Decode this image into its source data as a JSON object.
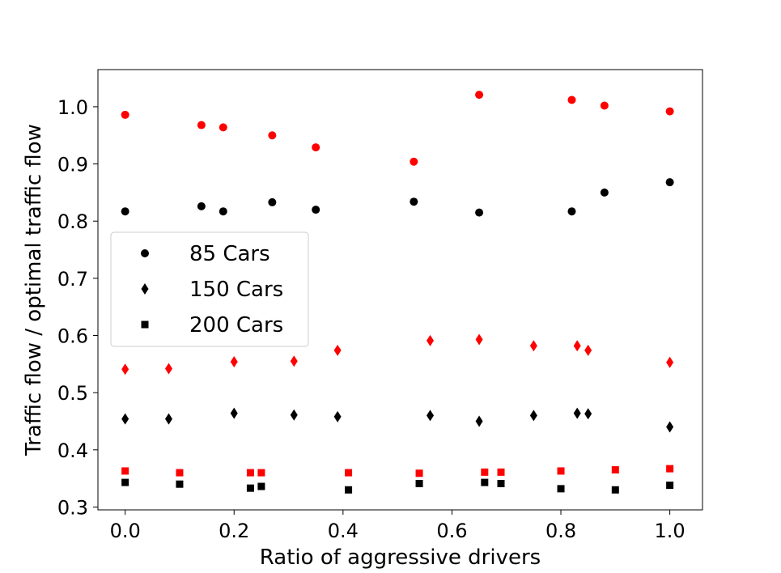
{
  "chart_data": {
    "type": "scatter",
    "title": "",
    "xlabel": "Ratio of aggressive drivers",
    "ylabel": "Traffic flow / optimal traffic flow",
    "xlim": [
      -0.05,
      1.06
    ],
    "ylim": [
      0.295,
      1.065
    ],
    "xticks": [
      0.0,
      0.2,
      0.4,
      0.6,
      0.8,
      1.0
    ],
    "xtick_labels": [
      "0.0",
      "0.2",
      "0.4",
      "0.6",
      "0.8",
      "1.0"
    ],
    "yticks": [
      0.3,
      0.4,
      0.5,
      0.6,
      0.7,
      0.8,
      0.9,
      1.0
    ],
    "ytick_labels": [
      "0.3",
      "0.4",
      "0.5",
      "0.6",
      "0.7",
      "0.8",
      "0.9",
      "1.0"
    ],
    "grid": false,
    "legend_position": "center-left",
    "legend": [
      {
        "label": "85 Cars",
        "marker": "circle"
      },
      {
        "label": "150 Cars",
        "marker": "diamond"
      },
      {
        "label": "200 Cars",
        "marker": "square"
      }
    ],
    "series": [
      {
        "marker": "circle",
        "color": "#ff0000",
        "x": [
          0.0,
          0.14,
          0.18,
          0.27,
          0.35,
          0.53,
          0.65,
          0.82,
          0.88,
          1.0
        ],
        "y": [
          0.986,
          0.968,
          0.964,
          0.95,
          0.929,
          0.904,
          1.021,
          1.012,
          1.002,
          0.992
        ]
      },
      {
        "marker": "circle",
        "color": "#000000",
        "x": [
          0.0,
          0.14,
          0.18,
          0.27,
          0.35,
          0.53,
          0.65,
          0.82,
          0.88,
          1.0
        ],
        "y": [
          0.817,
          0.826,
          0.817,
          0.833,
          0.82,
          0.834,
          0.815,
          0.817,
          0.85,
          0.868
        ]
      },
      {
        "marker": "diamond",
        "color": "#ff0000",
        "x": [
          0.0,
          0.08,
          0.2,
          0.31,
          0.39,
          0.56,
          0.65,
          0.75,
          0.83,
          0.85,
          1.0
        ],
        "y": [
          0.541,
          0.542,
          0.554,
          0.555,
          0.574,
          0.591,
          0.593,
          0.582,
          0.582,
          0.574,
          0.553
        ]
      },
      {
        "marker": "diamond",
        "color": "#000000",
        "x": [
          0.0,
          0.08,
          0.2,
          0.31,
          0.39,
          0.56,
          0.65,
          0.75,
          0.83,
          0.85,
          1.0
        ],
        "y": [
          0.454,
          0.454,
          0.464,
          0.461,
          0.458,
          0.46,
          0.45,
          0.46,
          0.464,
          0.463,
          0.44
        ]
      },
      {
        "marker": "square",
        "color": "#ff0000",
        "x": [
          0.0,
          0.1,
          0.23,
          0.25,
          0.41,
          0.54,
          0.66,
          0.69,
          0.8,
          0.9,
          1.0
        ],
        "y": [
          0.363,
          0.36,
          0.36,
          0.36,
          0.36,
          0.359,
          0.361,
          0.361,
          0.363,
          0.365,
          0.367
        ]
      },
      {
        "marker": "square",
        "color": "#000000",
        "x": [
          0.0,
          0.1,
          0.23,
          0.25,
          0.41,
          0.54,
          0.66,
          0.69,
          0.8,
          0.9,
          1.0
        ],
        "y": [
          0.343,
          0.34,
          0.333,
          0.336,
          0.33,
          0.341,
          0.343,
          0.341,
          0.332,
          0.33,
          0.338
        ]
      }
    ]
  }
}
